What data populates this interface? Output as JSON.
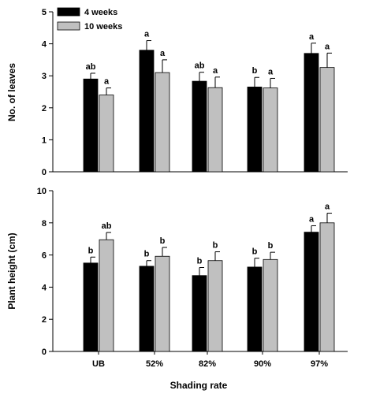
{
  "chart_data": [
    {
      "type": "bar",
      "categories": [
        "UB",
        "52%",
        "82%",
        "90%",
        "97%"
      ],
      "ylabel": "No. of leaves",
      "xlabel": "",
      "ylim": [
        0,
        5
      ],
      "yticks": [
        0,
        1,
        2,
        3,
        4,
        5
      ],
      "legend": "top-left",
      "series": [
        {
          "name": "4 weeks",
          "color": "#000000",
          "values": [
            2.9,
            3.8,
            2.83,
            2.65,
            3.7
          ],
          "errors": [
            0.18,
            0.3,
            0.28,
            0.3,
            0.32
          ],
          "labels": [
            "ab",
            "a",
            "ab",
            "b",
            "a"
          ]
        },
        {
          "name": "10 weeks",
          "color": "#c0c0c0",
          "values": [
            2.4,
            3.1,
            2.63,
            2.62,
            3.26
          ],
          "errors": [
            0.22,
            0.4,
            0.33,
            0.3,
            0.45
          ],
          "labels": [
            "a",
            "a",
            "a",
            "a",
            "a"
          ]
        }
      ]
    },
    {
      "type": "bar",
      "categories": [
        "UB",
        "52%",
        "82%",
        "90%",
        "97%"
      ],
      "ylabel": "Plant height (cm)",
      "xlabel": "Shading rate",
      "ylim": [
        0,
        10
      ],
      "yticks": [
        0,
        2,
        4,
        6,
        8,
        10
      ],
      "series": [
        {
          "name": "4 weeks",
          "color": "#000000",
          "values": [
            5.5,
            5.3,
            4.72,
            5.25,
            7.42
          ],
          "errors": [
            0.37,
            0.35,
            0.5,
            0.55,
            0.4
          ],
          "labels": [
            "b",
            "b",
            "b",
            "b",
            "a"
          ]
        },
        {
          "name": "10 weeks",
          "color": "#c0c0c0",
          "values": [
            6.95,
            5.92,
            5.65,
            5.72,
            8.0
          ],
          "errors": [
            0.45,
            0.55,
            0.55,
            0.45,
            0.6
          ],
          "labels": [
            "ab",
            "b",
            "b",
            "b",
            "a"
          ]
        }
      ]
    }
  ]
}
